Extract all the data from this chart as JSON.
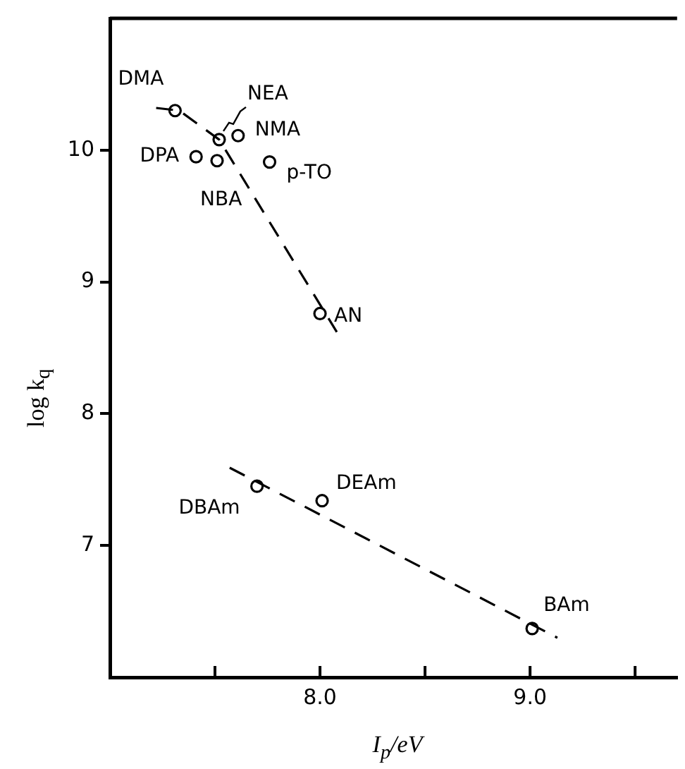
{
  "chart_data": {
    "type": "scatter",
    "xlabel": "I$_{p}$/eV",
    "ylabel": "log k$_{q}$",
    "xlim": [
      7.0,
      9.7
    ],
    "ylim": [
      6.0,
      11.0
    ],
    "xticks": [
      {
        "value": 7.5,
        "label": null
      },
      {
        "value": 8,
        "label": "8.0"
      },
      {
        "value": 8.5,
        "label": null
      },
      {
        "value": 9,
        "label": "9.0"
      },
      {
        "value": 9.5,
        "label": null
      }
    ],
    "yticks": [
      7,
      8,
      9,
      10
    ],
    "grid": false,
    "legend": false,
    "series": [
      {
        "color": "#000000",
        "marker": "circle",
        "x": [
          7.31,
          7.52,
          7.61,
          7.41,
          7.51,
          7.76,
          8.0,
          7.7,
          8.01,
          9.01
        ],
        "values": [
          10.3,
          10.08,
          10.11,
          9.95,
          9.92,
          9.91,
          8.76,
          7.45,
          7.34,
          6.37
        ]
      },
      {
        "type": "line",
        "color": "#000000",
        "marker": "none",
        "line_style": "dashed",
        "x": [
          7.22,
          7.33,
          7.52,
          8.08
        ],
        "values": [
          10.32,
          10.3,
          10.08,
          8.62
        ]
      },
      {
        "type": "line",
        "color": "#000000",
        "marker": "none",
        "line_style": "dashed",
        "x": [
          7.57,
          9.13
        ],
        "values": [
          7.59,
          6.3
        ]
      }
    ],
    "annotations": [
      {
        "text": "DMA",
        "x": 7.31,
        "y": 10.3
      },
      {
        "text": "NEA",
        "x": 7.52,
        "y": 10.08
      },
      {
        "text": "NMA",
        "x": 7.61,
        "y": 10.11
      },
      {
        "text": "DPA",
        "x": 7.41,
        "y": 9.95
      },
      {
        "text": "NBA",
        "x": 7.51,
        "y": 9.92
      },
      {
        "text": "p-TO",
        "x": 7.76,
        "y": 9.91
      },
      {
        "text": "AN",
        "x": 8.0,
        "y": 8.76
      },
      {
        "text": "DBAm",
        "x": 7.7,
        "y": 7.45
      },
      {
        "text": "DEAm",
        "x": 8.01,
        "y": 7.34
      },
      {
        "text": "BAm",
        "x": 9.01,
        "y": 6.37
      }
    ]
  }
}
